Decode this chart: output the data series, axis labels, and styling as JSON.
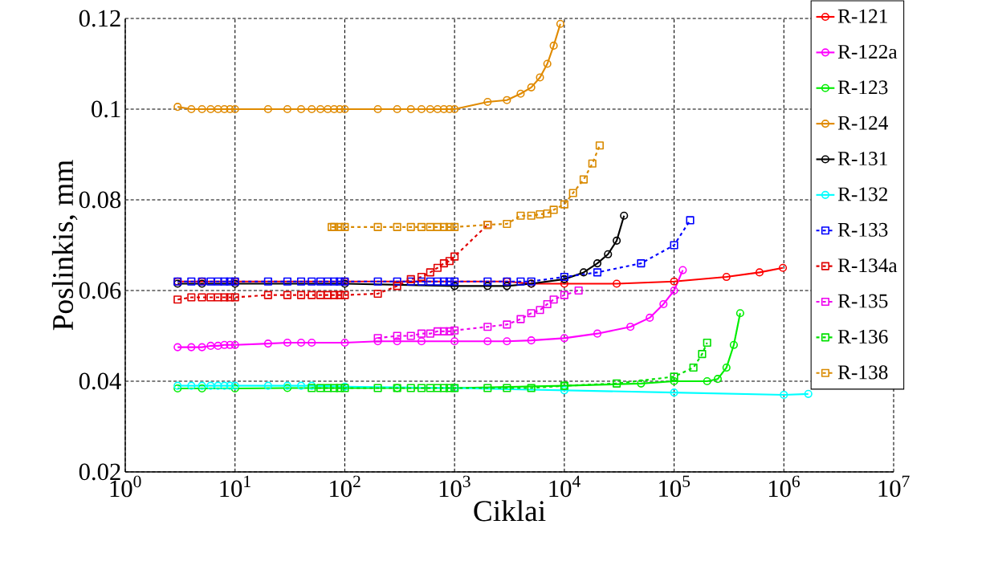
{
  "chart_data": {
    "type": "line",
    "xlabel": "Ciklai",
    "ylabel": "Poslinkis, mm",
    "log": "x",
    "grid": true,
    "legend": "top right",
    "xlim": [
      1,
      10000000
    ],
    "ylim": [
      0.02,
      0.12
    ],
    "xticks": [
      {
        "value": 1,
        "label": "10$^{0}$"
      },
      {
        "value": 10,
        "label": "10$^{1}$"
      },
      {
        "value": 100,
        "label": "10$^{2}$"
      },
      {
        "value": 1000,
        "label": "10$^{3}$"
      },
      {
        "value": 10000,
        "label": "10$^{4}$"
      },
      {
        "value": 100000,
        "label": "10$^{5}$"
      },
      {
        "value": 1000000,
        "label": "10$^{6}$"
      },
      {
        "value": 10000000,
        "label": "10$^{7}$"
      }
    ],
    "yticks": [
      0.02,
      0.04,
      0.06,
      0.08,
      0.1,
      0.12
    ],
    "series": [
      {
        "name": "R-121",
        "color": "#ff0000",
        "marker": "circle",
        "line_style": "solid",
        "x": [
          3,
          5,
          10,
          100,
          1000,
          3000,
          5000,
          10000,
          30000,
          100000,
          300000,
          600000,
          980000
        ],
        "values": [
          0.062,
          0.062,
          0.062,
          0.062,
          null,
          0.062,
          0.0615,
          0.0615,
          0.0615,
          0.062,
          0.063,
          0.064,
          0.065
        ]
      },
      {
        "name": "R-122a",
        "color": "#ff00ff",
        "marker": "circle",
        "line_style": "solid",
        "x": [
          3,
          4,
          5,
          6,
          7,
          8,
          9,
          10,
          20,
          30,
          40,
          50,
          100,
          200,
          300,
          500,
          1000,
          2000,
          3000,
          5000,
          10000,
          20000,
          40000,
          60000,
          80000,
          100000,
          120000
        ],
        "values": [
          0.0475,
          0.0475,
          0.0475,
          0.0478,
          0.0478,
          0.048,
          0.048,
          0.048,
          0.0483,
          0.0485,
          0.0485,
          0.0485,
          0.0485,
          0.0488,
          0.0488,
          0.0488,
          0.0488,
          0.0488,
          0.0488,
          0.049,
          0.0495,
          0.0505,
          0.052,
          0.054,
          0.057,
          0.06,
          0.0645
        ]
      },
      {
        "name": "R-123",
        "color": "#00ee00",
        "marker": "circle",
        "line_style": "solid",
        "x": [
          3,
          5,
          10,
          30,
          100,
          300,
          1000,
          10000,
          50000,
          100000,
          200000,
          250000,
          300000,
          350000,
          400000
        ],
        "values": [
          0.0384,
          0.0384,
          0.0384,
          0.0385,
          null,
          0.0385,
          0.0385,
          0.039,
          0.0395,
          0.04,
          0.04,
          0.0405,
          0.043,
          0.048,
          0.055
        ]
      },
      {
        "name": "R-124",
        "color": "#e08a00",
        "marker": "circle",
        "line_style": "solid",
        "x": [
          3,
          4,
          5,
          6,
          7,
          8,
          9,
          10,
          20,
          30,
          40,
          50,
          60,
          70,
          80,
          90,
          100,
          200,
          300,
          400,
          500,
          600,
          700,
          800,
          900,
          1000,
          2000,
          3000,
          4000,
          5000,
          6000,
          7000,
          8000,
          9200
        ],
        "values": [
          0.1005,
          0.1,
          0.1,
          0.1,
          0.1,
          0.1,
          0.1,
          0.1,
          0.1,
          0.1,
          0.1,
          0.1,
          0.1,
          0.1,
          0.1,
          0.1,
          0.1,
          0.1,
          0.1,
          0.1,
          0.1,
          0.1,
          0.1,
          0.1,
          0.1,
          0.1,
          0.1016,
          0.102,
          0.1034,
          0.1048,
          0.107,
          0.11,
          0.114,
          0.1188
        ]
      },
      {
        "name": "R-131",
        "color": "#000000",
        "marker": "circle",
        "line_style": "solid",
        "x": [
          3,
          5,
          10,
          100,
          1000,
          2000,
          3000,
          5000,
          10000,
          15000,
          20000,
          25000,
          30000,
          35000
        ],
        "values": [
          0.0615,
          0.0615,
          0.0615,
          0.0615,
          0.061,
          0.061,
          0.061,
          0.0615,
          0.0625,
          0.064,
          0.066,
          0.068,
          0.071,
          0.0765
        ]
      },
      {
        "name": "R-132",
        "color": "#00ffff",
        "marker": "circle",
        "line_style": "solid",
        "x": [
          3,
          4,
          5,
          6,
          7,
          8,
          9,
          10,
          20,
          30,
          40,
          50,
          100,
          1000,
          10000,
          100000,
          1000000,
          1670000
        ],
        "values": [
          0.039,
          0.039,
          0.039,
          0.039,
          0.039,
          0.039,
          0.039,
          0.039,
          0.039,
          0.039,
          0.039,
          0.039,
          0.0388,
          0.0385,
          0.038,
          0.0375,
          0.037,
          0.0372
        ]
      },
      {
        "name": "R-133",
        "color": "#0000ff",
        "marker": "square",
        "line_style": "dashed",
        "x": [
          3,
          4,
          5,
          6,
          7,
          8,
          9,
          10,
          20,
          30,
          40,
          50,
          60,
          70,
          80,
          90,
          100,
          200,
          300,
          400,
          500,
          600,
          700,
          800,
          900,
          1000,
          2000,
          3000,
          4000,
          5000,
          10000,
          20000,
          50000,
          100000,
          140000
        ],
        "values": [
          0.062,
          0.062,
          0.062,
          0.062,
          0.062,
          0.062,
          0.062,
          0.062,
          0.062,
          0.062,
          0.062,
          0.062,
          0.062,
          0.062,
          0.062,
          0.062,
          0.062,
          0.062,
          0.062,
          0.062,
          0.062,
          0.062,
          0.062,
          0.062,
          0.062,
          0.062,
          0.062,
          0.062,
          0.062,
          0.062,
          0.063,
          0.064,
          0.066,
          0.07,
          0.0755
        ]
      },
      {
        "name": "R-134a",
        "color": "#e00000",
        "marker": "square",
        "line_style": "dashed",
        "x": [
          3,
          4,
          5,
          6,
          7,
          8,
          9,
          10,
          20,
          30,
          40,
          50,
          60,
          70,
          80,
          90,
          100,
          200,
          300,
          400,
          500,
          600,
          700,
          800,
          900,
          1000,
          2000
        ],
        "values": [
          0.058,
          0.0585,
          0.0585,
          0.0585,
          0.0585,
          0.0585,
          0.0585,
          0.0585,
          0.059,
          0.059,
          0.059,
          0.059,
          0.059,
          0.059,
          0.059,
          0.059,
          0.059,
          0.0593,
          0.061,
          0.0625,
          0.063,
          0.064,
          0.065,
          0.066,
          0.0665,
          0.0675,
          0.0745
        ]
      },
      {
        "name": "R-135",
        "color": "#ee00ee",
        "marker": "square",
        "line_style": "dashed",
        "x": [
          200,
          300,
          400,
          500,
          600,
          700,
          800,
          900,
          1000,
          2000,
          3000,
          4000,
          5000,
          6000,
          7000,
          8000,
          10000,
          13500
        ],
        "values": [
          0.0495,
          0.05,
          0.05,
          0.0505,
          0.0505,
          0.051,
          0.051,
          0.051,
          0.0512,
          0.052,
          0.0525,
          0.0537,
          0.055,
          0.0557,
          0.057,
          0.058,
          0.059,
          0.06
        ]
      },
      {
        "name": "R-136",
        "color": "#00e000",
        "marker": "square",
        "line_style": "dashed",
        "x": [
          50,
          60,
          70,
          80,
          90,
          100,
          200,
          300,
          400,
          500,
          600,
          700,
          800,
          900,
          1000,
          2000,
          3000,
          5000,
          10000,
          30000,
          100000,
          150000,
          180000,
          200000
        ],
        "values": [
          0.0385,
          0.0385,
          0.0385,
          0.0385,
          0.0385,
          0.0385,
          0.0385,
          0.0385,
          0.0385,
          0.0385,
          0.0385,
          0.0385,
          0.0385,
          0.0385,
          0.0385,
          0.0385,
          0.0385,
          0.0385,
          0.039,
          0.0395,
          0.041,
          0.043,
          0.046,
          0.0485
        ]
      },
      {
        "name": "R-138",
        "color": "#d98a00",
        "marker": "square",
        "line_style": "dashed",
        "x": [
          76,
          80,
          90,
          100,
          200,
          300,
          400,
          500,
          600,
          700,
          800,
          900,
          1000,
          2000,
          3000,
          4000,
          5000,
          6000,
          7000,
          8000,
          10000,
          12000,
          15000,
          18000,
          21000
        ],
        "values": [
          0.074,
          0.074,
          0.074,
          0.074,
          0.074,
          0.074,
          0.074,
          0.074,
          0.074,
          0.074,
          0.074,
          0.074,
          0.074,
          0.0745,
          0.0747,
          0.0765,
          0.0765,
          0.0768,
          0.077,
          0.0778,
          0.079,
          0.0815,
          0.0845,
          0.088,
          0.092
        ]
      }
    ]
  }
}
